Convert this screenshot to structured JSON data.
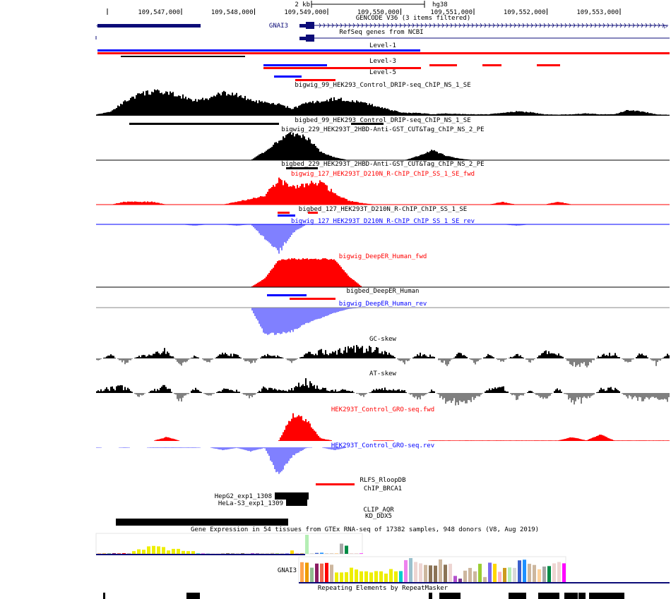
{
  "ruler": {
    "scale_label": "2 kb",
    "assembly": "hg38",
    "ticks": [
      "109,547,000",
      "109,548,000",
      "109,549,000",
      "109,550,000",
      "109,551,000",
      "109,552,000",
      "109,553,000"
    ],
    "tick_bp": [
      109547000,
      109548000,
      109549000,
      109550000,
      109551000,
      109552000,
      109553000
    ]
  },
  "labels": {
    "gencode": "GENCODE V36 (3 items filtered)",
    "gene_name": "GNAI3",
    "refseq": "RefSeq genes from NCBI",
    "level1": "Level-1",
    "level3": "Level-3",
    "level5": "Level-5",
    "drip_wig": "bigwig_99_HEK293_Control_DRIP-seq_ChIP_NS_1_SE",
    "drip_bed": "bigbed_99_HEK293_Control_DRIP-seq_ChIP_NS_1_SE",
    "cut_wig": "bigwig_229_HEK293T_2HBD-Anti-GST_CUT&Tag_ChIP_NS_2_PE",
    "cut_bed": "bigbed_229_HEK293T_2HBD-Anti-GST_CUT&Tag_ChIP_NS_2_PE",
    "r127_fwd": "bigwig_127_HEK293T_D210N_R-ChIP_ChIP_SS_1_SE_fwd",
    "r127_bed": "bigbed_127_HEK293T_D210N_R-ChIP_ChIP_SS_1_SE",
    "r127_rev": "bigwig_127_HEK293T_D210N_R-ChIP_ChIP_SS_1_SE_rev",
    "deeper_fwd": "bigwig_DeepER_Human_fwd",
    "deeper_bed": "bigbed_DeepER_Human",
    "deeper_rev": "bigwig_DeepER_Human_rev",
    "gc_skew": "GC-skew",
    "at_skew": "AT-skew",
    "gro_fwd": "HEK293T_Control_GRO-seq.fwd",
    "gro_rev": "HEK293T_Control_GRO-seq.rev",
    "rlfs": "RLFS_RloopDB",
    "chip_brca1": "ChIP_BRCA1",
    "hepg2": "HepG2_exp1_1308",
    "hela": "HeLa-S3_exp1_1309",
    "clip_aqr": "CLIP_AQR",
    "kd_ddx5": "KD_DDX5",
    "gtex": "Gene Expression in 54 tissues from GTEx RNA-seq of 17382 samples, 948 donors (V8, Aug 2019)",
    "gtex_gene": "GNAI3",
    "repeatmasker": "Repeating Elements by RepeatMasker"
  },
  "colors": {
    "gene": "#0c0c78",
    "fwd": "#ff0000",
    "rev": "#0000ff",
    "rev_fill": "#8080ff",
    "signal": "#000000",
    "skew_neg": "#808080"
  },
  "signals": {
    "drip": [
      0.05,
      0.15,
      0.5,
      0.75,
      0.85,
      0.8,
      0.7,
      0.55,
      0.6,
      0.8,
      0.75,
      0.55,
      0.45,
      0.4,
      0.25,
      0.45,
      0.5,
      0.6,
      0.55,
      0.45,
      0.35,
      0.2,
      0.1,
      0.1,
      0.05,
      0.08,
      0.06,
      0.05,
      0.05,
      0.1,
      0.15,
      0.12,
      0.05,
      0.04,
      0.05,
      0.08,
      0.05,
      0.05,
      0.2,
      0.15,
      0.05,
      0.03
    ],
    "cut229": [
      0,
      0,
      0,
      0,
      0,
      0,
      0,
      0,
      0,
      0,
      0,
      0,
      0.3,
      0.7,
      0.95,
      0.8,
      0.3,
      0.1,
      0,
      0,
      0,
      0,
      0,
      0.15,
      0.35,
      0.15,
      0.05,
      0,
      0,
      0,
      0,
      0,
      0,
      0,
      0,
      0,
      0,
      0,
      0,
      0,
      0,
      0
    ],
    "r127_fwd": [
      0,
      0,
      0.1,
      0.1,
      0.1,
      0,
      0,
      0,
      0,
      0,
      0.1,
      0.2,
      0.3,
      0.9,
      0.6,
      0.7,
      0.8,
      0.4,
      0.15,
      0.05,
      0,
      0,
      0,
      0,
      0,
      0,
      0,
      0,
      0,
      0.1,
      0,
      0,
      0,
      0.1,
      0,
      0,
      0,
      0,
      0,
      0,
      0,
      0
    ],
    "r127_rev": [
      0,
      0,
      0,
      0,
      0,
      0,
      0,
      0.05,
      0,
      0,
      0.05,
      0,
      0.5,
      1.0,
      0.3,
      0,
      0,
      0,
      0,
      0,
      0,
      0,
      0,
      0,
      0,
      0,
      0,
      0,
      0,
      0,
      0.05,
      0,
      0,
      0,
      0,
      0,
      0,
      0,
      0,
      0,
      0,
      0
    ],
    "deeper_fwd": [
      0,
      0,
      0,
      0,
      0,
      0,
      0,
      0,
      0,
      0,
      0,
      0,
      0.3,
      0.95,
      1,
      1,
      1,
      0.98,
      0.4,
      0,
      0,
      0,
      0,
      0,
      0,
      0,
      0,
      0,
      0,
      0,
      0,
      0,
      0,
      0,
      0,
      0,
      0,
      0,
      0,
      0,
      0,
      0
    ],
    "deeper_rev": [
      0,
      0,
      0,
      0,
      0,
      0,
      0,
      0,
      0,
      0,
      0,
      0,
      1,
      1,
      0.9,
      0.6,
      0.4,
      0.2,
      0.05,
      0,
      0,
      0,
      0,
      0,
      0,
      0,
      0,
      0,
      0,
      0,
      0,
      0,
      0,
      0,
      0,
      0,
      0,
      0,
      0,
      0,
      0,
      0
    ],
    "gc_skew": [
      -0.2,
      0.3,
      -0.4,
      0.2,
      0.3,
      0.7,
      -0.5,
      0.2,
      -0.3,
      0.4,
      0.3,
      -0.5,
      0.3,
      0.2,
      -0.3,
      0.4,
      0.6,
      0.5,
      0.9,
      0.8,
      0.7,
      0.3,
      -0.4,
      0.4,
      0.2,
      -0.5,
      0.5,
      -0.4,
      0.3,
      -0.3,
      0.4,
      -0.3,
      0.5,
      0.4,
      -0.5,
      -0.6,
      0.3,
      0.4,
      -0.4,
      0.5,
      -0.5,
      0.6
    ],
    "at_skew": [
      0.2,
      0.4,
      0.5,
      -0.3,
      0.2,
      0.6,
      -0.7,
      0.4,
      -0.3,
      0.3,
      0.2,
      -0.4,
      0.5,
      0.2,
      0.3,
      1.0,
      0.4,
      0.2,
      0.3,
      -0.3,
      0.4,
      0.3,
      0.2,
      -0.6,
      0.3,
      -0.8,
      -0.7,
      -0.6,
      0.3,
      0.5,
      -0.5,
      0.2,
      -0.6,
      0.4,
      -0.7,
      -0.6,
      0.3,
      0.4,
      -0.4,
      -0.5,
      -0.4,
      -0.6
    ],
    "gro_fwd": [
      0,
      0,
      0,
      0,
      0,
      0.15,
      0,
      0,
      0,
      0,
      0,
      0,
      0,
      0,
      1.0,
      0.8,
      0.1,
      0,
      0,
      0,
      0.02,
      0.02,
      0,
      0,
      0.02,
      0.02,
      0.02,
      0.02,
      0.02,
      0.02,
      0.02,
      0.02,
      0.02,
      0.02,
      0.15,
      0.02,
      0.25,
      0.02,
      0.02,
      0.02,
      0.02,
      0.02
    ],
    "gro_rev": [
      0.02,
      0,
      0.02,
      0,
      0.02,
      0.02,
      0.02,
      0.02,
      0,
      0.1,
      0.02,
      0.15,
      0.02,
      1.0,
      0.3,
      0.02,
      0,
      0.1,
      0,
      0,
      0,
      0,
      0,
      0,
      0,
      0,
      0,
      0,
      0,
      0,
      0,
      0,
      0,
      0,
      0,
      0,
      0,
      0,
      0,
      0,
      0,
      0
    ]
  },
  "gtex": {
    "tissue_colors": [
      "#FFA54F",
      "#EE9A00",
      "#8FBC8F",
      "#8B1C62",
      "#EE6A50",
      "#FF0000",
      "#CDB79E",
      "#EEEE00",
      "#EEEE00",
      "#EEEE00",
      "#EEEE00",
      "#EEEE00",
      "#EEEE00",
      "#EEEE00",
      "#EEEE00",
      "#EEEE00",
      "#EEEE00",
      "#EEEE00",
      "#EEEE00",
      "#EEEE00",
      "#00CDCD",
      "#EE82EE",
      "#9AC0CD",
      "#EED5D2",
      "#EED5D2",
      "#CDB79E",
      "#8B7355",
      "#8B7355",
      "#CDB79E",
      "#8B7355",
      "#EED5D2",
      "#B452CD",
      "#7A378B",
      "#CDB79E",
      "#CDB79E",
      "#CDB79E",
      "#9ACD32",
      "#CDB79E",
      "#7A67EE",
      "#FFD700",
      "#FFB6C1",
      "#CD9B1D",
      "#B4EEB4",
      "#D9D9D9",
      "#3A5FCD",
      "#1E90FF",
      "#CDB79E",
      "#CDB79E",
      "#FFD39B",
      "#A6A6A6",
      "#008B45",
      "#EED5D2",
      "#EED5D2",
      "#FF00FF"
    ],
    "chart1_values": [
      2,
      2,
      3,
      3,
      3,
      3,
      3,
      12,
      20,
      18,
      33,
      35,
      33,
      30,
      15,
      22,
      22,
      13,
      12,
      12,
      2,
      3,
      2,
      2,
      2,
      3,
      3,
      2,
      2,
      3,
      2,
      3,
      2,
      2,
      2,
      4,
      2,
      2,
      2,
      15,
      3,
      2,
      84,
      3,
      4,
      5,
      2,
      2,
      3,
      45,
      36,
      3,
      3,
      2
    ],
    "chart2_values": [
      87,
      85,
      63,
      81,
      81,
      84,
      76,
      42,
      42,
      43,
      63,
      55,
      47,
      47,
      42,
      48,
      47,
      37,
      57,
      47,
      48,
      96,
      105,
      88,
      82,
      75,
      73,
      72,
      99,
      76,
      80,
      27,
      15,
      50,
      62,
      47,
      80,
      22,
      85,
      80,
      45,
      62,
      64,
      62,
      95,
      98,
      80,
      75,
      56,
      68,
      70,
      82,
      88,
      82
    ]
  }
}
